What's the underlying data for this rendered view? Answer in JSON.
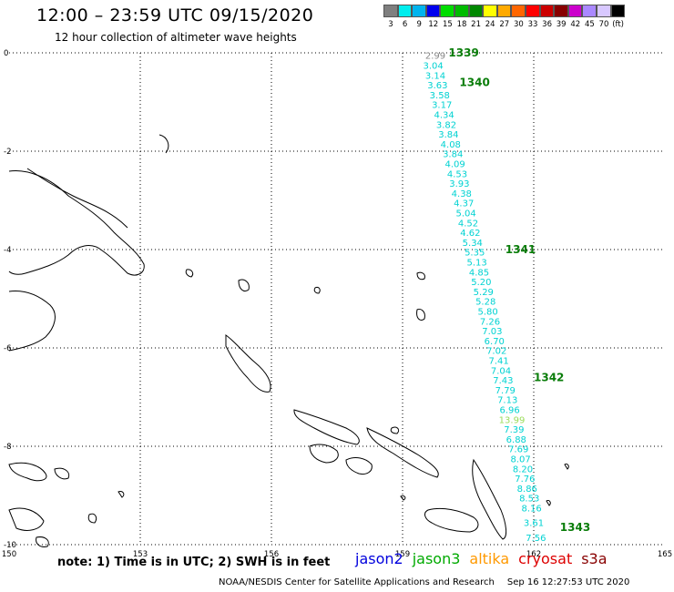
{
  "title": "12:00 – 23:59 UTC 09/15/2020",
  "subtitle": "12 hour collection of altimeter wave heights",
  "colorbar": {
    "colors": [
      "#7f7f7f",
      "#00eeee",
      "#00b4ee",
      "#0000ee",
      "#00dd00",
      "#00bb00",
      "#008800",
      "#ffff00",
      "#ffaa00",
      "#ff6600",
      "#ff0000",
      "#cc0000",
      "#880000",
      "#cc00cc",
      "#aa88ff",
      "#d8c8ff",
      "#000000"
    ],
    "labels": [
      "3",
      "6",
      "9",
      "12",
      "15",
      "18",
      "21",
      "24",
      "27",
      "30",
      "33",
      "36",
      "39",
      "42",
      "45",
      "70",
      "(ft)"
    ]
  },
  "axes": {
    "lon_ticks": [
      "150",
      "153",
      "156",
      "159",
      "162",
      "165"
    ],
    "lat_ticks": [
      "0",
      "-2",
      "-4",
      "-6",
      "-8",
      "-10"
    ]
  },
  "track": {
    "color": "#00d2d2",
    "highlight_color": "#9bdc5a",
    "start_color": "#888888",
    "points": [
      {
        "lat": -0.05,
        "lon": 159.75,
        "value": "2.99",
        "kind": "start"
      },
      {
        "lat": -0.25,
        "lon": 159.7,
        "value": "3.04"
      },
      {
        "lat": -0.45,
        "lon": 159.75,
        "value": "3.14"
      },
      {
        "lat": -0.65,
        "lon": 159.8,
        "value": "3.63"
      },
      {
        "lat": -0.85,
        "lon": 159.85,
        "value": "3.58"
      },
      {
        "lat": -1.05,
        "lon": 159.9,
        "value": "3.17"
      },
      {
        "lat": -1.25,
        "lon": 159.95,
        "value": "4.34"
      },
      {
        "lat": -1.45,
        "lon": 160.0,
        "value": "3.82"
      },
      {
        "lat": -1.65,
        "lon": 160.05,
        "value": "3.84"
      },
      {
        "lat": -1.85,
        "lon": 160.1,
        "value": "4.08"
      },
      {
        "lat": -2.05,
        "lon": 160.15,
        "value": "3.84"
      },
      {
        "lat": -2.25,
        "lon": 160.2,
        "value": "4.09"
      },
      {
        "lat": -2.45,
        "lon": 160.25,
        "value": "4.53"
      },
      {
        "lat": -2.65,
        "lon": 160.3,
        "value": "3.93"
      },
      {
        "lat": -2.85,
        "lon": 160.35,
        "value": "4.38"
      },
      {
        "lat": -3.05,
        "lon": 160.4,
        "value": "4.37"
      },
      {
        "lat": -3.25,
        "lon": 160.45,
        "value": "5.04"
      },
      {
        "lat": -3.45,
        "lon": 160.5,
        "value": "4.52"
      },
      {
        "lat": -3.65,
        "lon": 160.55,
        "value": "4.62"
      },
      {
        "lat": -3.85,
        "lon": 160.6,
        "value": "5.34"
      },
      {
        "lat": -4.05,
        "lon": 160.65,
        "value": "5.35"
      },
      {
        "lat": -4.25,
        "lon": 160.7,
        "value": "5.13"
      },
      {
        "lat": -4.45,
        "lon": 160.75,
        "value": "4.85"
      },
      {
        "lat": -4.65,
        "lon": 160.8,
        "value": "5.20"
      },
      {
        "lat": -4.85,
        "lon": 160.85,
        "value": "5.29"
      },
      {
        "lat": -5.05,
        "lon": 160.9,
        "value": "5.28"
      },
      {
        "lat": -5.25,
        "lon": 160.95,
        "value": "5.80"
      },
      {
        "lat": -5.45,
        "lon": 161.0,
        "value": "7.26"
      },
      {
        "lat": -5.65,
        "lon": 161.05,
        "value": "7.03"
      },
      {
        "lat": -5.85,
        "lon": 161.1,
        "value": "6.70"
      },
      {
        "lat": -6.05,
        "lon": 161.15,
        "value": "7.02"
      },
      {
        "lat": -6.25,
        "lon": 161.2,
        "value": "7.41"
      },
      {
        "lat": -6.45,
        "lon": 161.25,
        "value": "7.04"
      },
      {
        "lat": -6.65,
        "lon": 161.3,
        "value": "7.43"
      },
      {
        "lat": -6.85,
        "lon": 161.35,
        "value": "7.79"
      },
      {
        "lat": -7.05,
        "lon": 161.4,
        "value": "7.13"
      },
      {
        "lat": -7.25,
        "lon": 161.45,
        "value": "6.96"
      },
      {
        "lat": -7.45,
        "lon": 161.5,
        "value": "13.99",
        "kind": "highlight"
      },
      {
        "lat": -7.65,
        "lon": 161.55,
        "value": "7.39"
      },
      {
        "lat": -7.85,
        "lon": 161.6,
        "value": "6.88"
      },
      {
        "lat": -8.05,
        "lon": 161.65,
        "value": "7.69"
      },
      {
        "lat": -8.25,
        "lon": 161.7,
        "value": "8.07"
      },
      {
        "lat": -8.45,
        "lon": 161.75,
        "value": "8.20"
      },
      {
        "lat": -8.65,
        "lon": 161.8,
        "value": "7.76"
      },
      {
        "lat": -8.85,
        "lon": 161.85,
        "value": "8.86"
      },
      {
        "lat": -9.05,
        "lon": 161.9,
        "value": "8.53"
      },
      {
        "lat": -9.25,
        "lon": 161.95,
        "value": "8.16"
      },
      {
        "lat": -9.55,
        "lon": 162.0,
        "value": "3.61"
      },
      {
        "lat": -9.85,
        "lon": 162.05,
        "value": "7.56"
      }
    ]
  },
  "orbits": [
    {
      "label": "1339",
      "lat": 0.0,
      "lon": 160.05
    },
    {
      "label": "1340",
      "lat": -0.6,
      "lon": 160.3
    },
    {
      "label": "1341",
      "lat": -4.0,
      "lon": 161.35
    },
    {
      "label": "1342",
      "lat": -6.6,
      "lon": 162.0
    },
    {
      "label": "1343",
      "lat": -9.65,
      "lon": 162.6
    }
  ],
  "legend_note": "note:  1) Time is in UTC;  2) SWH is in feet",
  "missions": [
    {
      "name": "jason2",
      "color": "#0000dd"
    },
    {
      "name": "jason3",
      "color": "#00aa00"
    },
    {
      "name": "altika",
      "color": "#ff9900"
    },
    {
      "name": "cryosat",
      "color": "#dd0000"
    },
    {
      "name": "s3a",
      "color": "#880000"
    }
  ],
  "footer": "NOAA/NESDIS Center for Satellite Applications and Research",
  "timestamp": "Sep 16 12:27:53 UTC 2020"
}
